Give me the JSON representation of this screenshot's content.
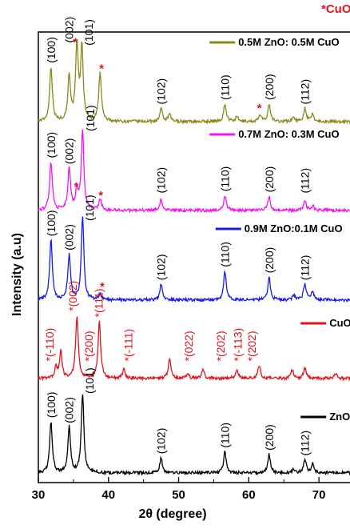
{
  "chart_data": {
    "type": "line",
    "xlabel": "2θ (degree)",
    "ylabel": "Intensity (a.u)",
    "xlim": [
      30,
      75
    ],
    "xticks": [
      30,
      40,
      50,
      60,
      70
    ],
    "y_ticks_shown": false,
    "grid": false,
    "legend_placement": "inline at right of each pattern",
    "corner_note": "*CuO",
    "series": [
      {
        "name": "0.5M ZnO: 0.5M CuO",
        "color": "#8a8a1c",
        "offset": 4,
        "peaks": [
          [
            31.8,
            0.62
          ],
          [
            34.4,
            0.52
          ],
          [
            35.5,
            0.85
          ],
          [
            36.2,
            0.82
          ],
          [
            38.8,
            0.55
          ],
          [
            47.5,
            0.14
          ],
          [
            48.7,
            0.08
          ],
          [
            56.6,
            0.2
          ],
          [
            58.3,
            0.05
          ],
          [
            61.6,
            0.07
          ],
          [
            62.9,
            0.2
          ],
          [
            66.4,
            0.05
          ],
          [
            68.0,
            0.15
          ],
          [
            69.1,
            0.08
          ]
        ],
        "labels": [
          {
            "text": "(100)",
            "x": 31.8,
            "star": false
          },
          {
            "text": "(002)",
            "x": 34.4,
            "star": false
          },
          {
            "text": "(101)",
            "x": 37.2,
            "star": false
          },
          {
            "text": "(102)",
            "x": 47.5,
            "star": false
          },
          {
            "text": "(110)",
            "x": 56.6,
            "star": false
          },
          {
            "text": "(200)",
            "x": 62.9,
            "star": false
          },
          {
            "text": "(112)",
            "x": 68.0,
            "star": false
          }
        ],
        "stars": [
          35.3,
          39.0,
          61.5
        ]
      },
      {
        "name": "0.7M ZnO: 0.3M CuO",
        "color": "#ee17ee",
        "offset": 3,
        "peaks": [
          [
            31.8,
            0.55
          ],
          [
            34.4,
            0.48
          ],
          [
            35.5,
            0.22
          ],
          [
            36.3,
            0.9
          ],
          [
            38.8,
            0.12
          ],
          [
            47.5,
            0.12
          ],
          [
            56.6,
            0.17
          ],
          [
            62.9,
            0.16
          ],
          [
            68.0,
            0.11
          ],
          [
            69.1,
            0.05
          ]
        ],
        "labels": [
          {
            "text": "(100)",
            "x": 31.8,
            "star": false
          },
          {
            "text": "(002)",
            "x": 34.4,
            "star": false
          },
          {
            "text": "(101)",
            "x": 37.4,
            "star": false
          },
          {
            "text": "(102)",
            "x": 47.5,
            "star": false
          },
          {
            "text": "(110)",
            "x": 56.6,
            "star": false
          },
          {
            "text": "(200)",
            "x": 62.9,
            "star": false
          },
          {
            "text": "(112)",
            "x": 68.0,
            "star": false
          }
        ],
        "stars": [
          35.4,
          38.9
        ]
      },
      {
        "name": "0.9M ZnO:0.1M CuO",
        "color": "#1a1ae6",
        "offset": 2,
        "peaks": [
          [
            31.8,
            0.68
          ],
          [
            34.4,
            0.52
          ],
          [
            36.3,
            0.95
          ],
          [
            38.8,
            0.06
          ],
          [
            47.5,
            0.18
          ],
          [
            56.6,
            0.33
          ],
          [
            62.9,
            0.26
          ],
          [
            66.4,
            0.05
          ],
          [
            68.0,
            0.18
          ],
          [
            69.1,
            0.1
          ]
        ],
        "labels": [
          {
            "text": "(100)",
            "x": 31.8,
            "star": false
          },
          {
            "text": "(002)",
            "x": 34.4,
            "star": false
          },
          {
            "text": "(101)",
            "x": 37.3,
            "star": false
          },
          {
            "text": "(102)",
            "x": 47.5,
            "star": false
          },
          {
            "text": "(110)",
            "x": 56.6,
            "star": false
          },
          {
            "text": "(200)",
            "x": 62.9,
            "star": false
          },
          {
            "text": "(112)",
            "x": 68.0,
            "star": false
          }
        ],
        "stars": [
          39.1
        ]
      },
      {
        "name": "CuO",
        "color": "#e0141e",
        "offset": 1,
        "peaks": [
          [
            32.5,
            0.12
          ],
          [
            33.2,
            0.3
          ],
          [
            35.5,
            0.72
          ],
          [
            38.7,
            0.65
          ],
          [
            42.2,
            0.1
          ],
          [
            48.7,
            0.22
          ],
          [
            51.3,
            0.05
          ],
          [
            53.5,
            0.1
          ],
          [
            58.3,
            0.1
          ],
          [
            61.5,
            0.15
          ],
          [
            66.2,
            0.1
          ],
          [
            68.0,
            0.12
          ],
          [
            72.4,
            0.06
          ]
        ],
        "labels": [
          {
            "text": "(-110)",
            "x": 31.6,
            "star": true
          },
          {
            "text": "(002)",
            "x": 34.9,
            "star": true
          },
          {
            "text": "(200)",
            "x": 37.2,
            "star": true
          },
          {
            "text": "(111)",
            "x": 38.6,
            "star": true
          },
          {
            "text": "(-111)",
            "x": 42.8,
            "star": true
          },
          {
            "text": "(022)",
            "x": 51.4,
            "star": true
          },
          {
            "text": "(202)",
            "x": 56.0,
            "star": true
          },
          {
            "text": "(-113)",
            "x": 58.4,
            "star": true
          },
          {
            "text": "(202)",
            "x": 60.4,
            "star": true
          }
        ],
        "stars": []
      },
      {
        "name": "ZnO",
        "color": "#000000",
        "offset": 0,
        "peaks": [
          [
            31.8,
            0.58
          ],
          [
            34.4,
            0.52
          ],
          [
            36.3,
            0.9
          ],
          [
            47.5,
            0.17
          ],
          [
            56.6,
            0.24
          ],
          [
            62.9,
            0.21
          ],
          [
            66.4,
            0.04
          ],
          [
            68.0,
            0.15
          ],
          [
            69.1,
            0.1
          ]
        ],
        "labels": [
          {
            "text": "(100)",
            "x": 31.8,
            "star": false
          },
          {
            "text": "(002)",
            "x": 34.4,
            "star": false
          },
          {
            "text": "(101)",
            "x": 37.3,
            "star": false
          },
          {
            "text": "(102)",
            "x": 47.5,
            "star": false
          },
          {
            "text": "(110)",
            "x": 56.6,
            "star": false
          },
          {
            "text": "(200)",
            "x": 62.9,
            "star": false
          },
          {
            "text": "(112)",
            "x": 68.0,
            "star": false
          }
        ],
        "stars": []
      }
    ]
  }
}
